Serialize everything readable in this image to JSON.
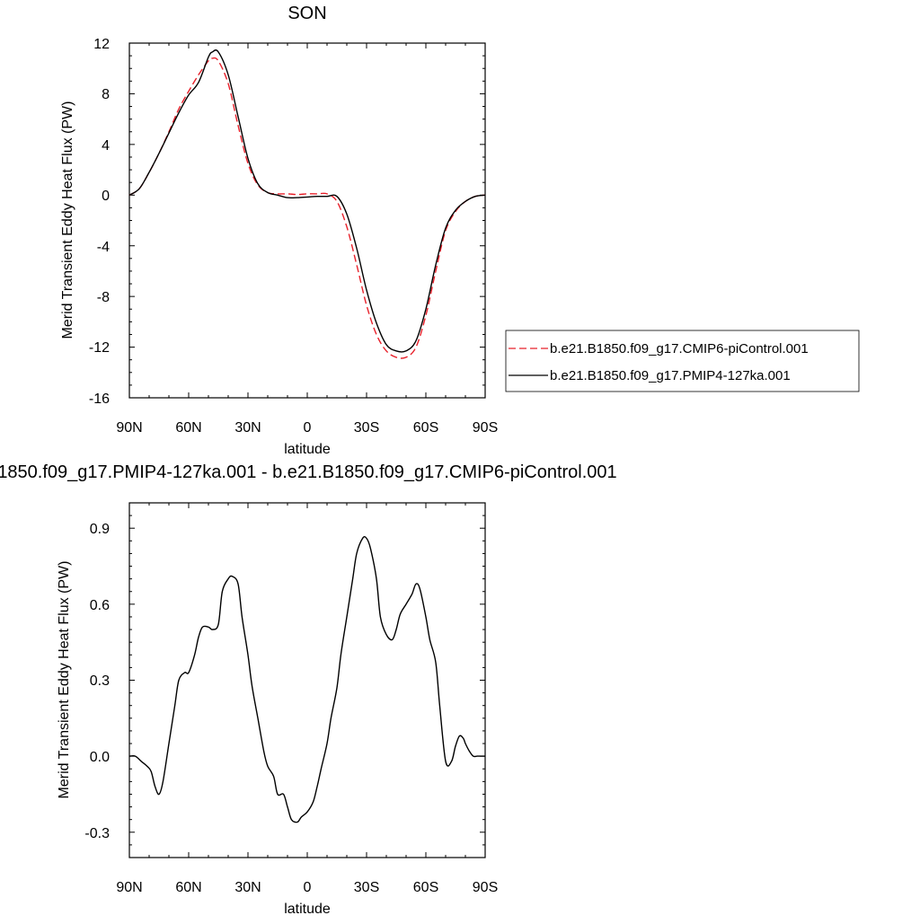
{
  "chart_data": [
    {
      "type": "line",
      "title": "SON",
      "xlabel": "latitude",
      "ylabel": "Merid Transient Eddy Heat Flux (PW)",
      "x_ticks": [
        "90N",
        "60N",
        "30N",
        "0",
        "30S",
        "60S",
        "90S"
      ],
      "y_ticks": [
        "12",
        "8",
        "4",
        "0",
        "-4",
        "-8",
        "-12",
        "-16"
      ],
      "xlim": [
        90,
        -90
      ],
      "ylim": [
        -16,
        12
      ],
      "x": [
        90,
        85,
        80,
        75,
        70,
        65,
        60,
        55,
        50,
        48,
        45,
        40,
        35,
        30,
        25,
        20,
        15,
        10,
        5,
        0,
        -5,
        -10,
        -15,
        -20,
        -25,
        -30,
        -35,
        -40,
        -45,
        -50,
        -55,
        -60,
        -65,
        -70,
        -75,
        -80,
        -85,
        -90
      ],
      "legend_position": "right",
      "series": [
        {
          "name": "b.e21.B1850.f09_g17.CMIP6-piControl.001",
          "color": "#e8202a",
          "dash": "dashed",
          "values": [
            0.0,
            0.5,
            1.8,
            3.3,
            5.0,
            6.8,
            8.2,
            9.5,
            10.6,
            10.8,
            10.6,
            8.8,
            5.5,
            2.5,
            0.8,
            0.2,
            0.1,
            0.1,
            0.05,
            0.1,
            0.1,
            0.1,
            -0.5,
            -2.5,
            -5.5,
            -8.7,
            -11.0,
            -12.3,
            -12.8,
            -12.8,
            -12.0,
            -9.5,
            -6.0,
            -2.8,
            -1.3,
            -0.5,
            -0.1,
            0.0
          ]
        },
        {
          "name": "b.e21.B1850.f09_g17.PMIP4-127ka.001",
          "color": "#000000",
          "dash": "solid",
          "values": [
            0.0,
            0.5,
            1.8,
            3.3,
            4.9,
            6.5,
            7.9,
            8.9,
            10.9,
            11.3,
            11.3,
            9.5,
            6.2,
            2.9,
            0.9,
            0.2,
            0.0,
            -0.2,
            -0.2,
            -0.15,
            -0.1,
            -0.1,
            -0.1,
            -1.5,
            -4.2,
            -7.5,
            -10.1,
            -11.8,
            -12.3,
            -12.3,
            -11.5,
            -9.0,
            -5.5,
            -2.6,
            -1.2,
            -0.5,
            -0.1,
            0.0
          ]
        }
      ]
    },
    {
      "type": "line",
      "title": "1850.f09_g17.PMIP4-127ka.001 - b.e21.B1850.f09_g17.CMIP6-piControl.001",
      "xlabel": "latitude",
      "ylabel": "Merid Transient Eddy Heat Flux (PW)",
      "x_ticks": [
        "90N",
        "60N",
        "30N",
        "0",
        "30S",
        "60S",
        "90S"
      ],
      "y_ticks": [
        "0.9",
        "0.6",
        "0.3",
        "0.0",
        "-0.3"
      ],
      "xlim": [
        90,
        -90
      ],
      "ylim": [
        -0.4,
        1.0
      ],
      "x": [
        90,
        87,
        84,
        81,
        79,
        77,
        75,
        73,
        70,
        67,
        65,
        62,
        60,
        57,
        55,
        53,
        50,
        48,
        45,
        43,
        40,
        38,
        35,
        33,
        30,
        28,
        25,
        22,
        20,
        17,
        15,
        12,
        10,
        8,
        5,
        3,
        0,
        -3,
        -5,
        -7,
        -10,
        -12,
        -15,
        -17,
        -20,
        -23,
        -25,
        -28,
        -30,
        -32,
        -35,
        -37,
        -40,
        -43,
        -45,
        -47,
        -50,
        -53,
        -55,
        -57,
        -60,
        -62,
        -65,
        -67,
        -70,
        -73,
        -75,
        -77,
        -79,
        -80,
        -82,
        -84,
        -86,
        -88,
        -90
      ],
      "series": [
        {
          "name": "",
          "color": "#000000",
          "dash": "solid",
          "values": [
            0.0,
            0.0,
            -0.02,
            -0.04,
            -0.06,
            -0.12,
            -0.15,
            -0.1,
            0.05,
            0.2,
            0.3,
            0.33,
            0.33,
            0.4,
            0.47,
            0.51,
            0.51,
            0.5,
            0.52,
            0.65,
            0.7,
            0.71,
            0.68,
            0.55,
            0.4,
            0.28,
            0.15,
            0.02,
            -0.04,
            -0.08,
            -0.15,
            -0.15,
            -0.2,
            -0.25,
            -0.26,
            -0.24,
            -0.22,
            -0.18,
            -0.12,
            -0.05,
            0.05,
            0.15,
            0.27,
            0.4,
            0.55,
            0.7,
            0.8,
            0.86,
            0.86,
            0.82,
            0.7,
            0.55,
            0.48,
            0.46,
            0.5,
            0.56,
            0.6,
            0.64,
            0.68,
            0.66,
            0.55,
            0.46,
            0.37,
            0.2,
            -0.02,
            -0.02,
            0.04,
            0.08,
            0.07,
            0.05,
            0.02,
            0.0,
            0.0,
            0.0,
            0.0
          ]
        }
      ]
    }
  ]
}
